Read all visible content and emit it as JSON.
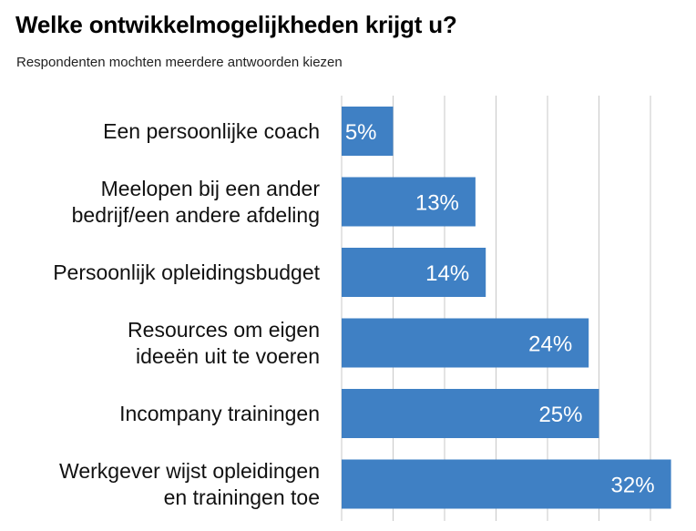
{
  "chart_data": {
    "type": "bar",
    "orientation": "horizontal",
    "title": "Welke ontwikkelmogelijkheden krijgt u?",
    "subtitle": "Respondenten mochten meerdere antwoorden kiezen",
    "categories": [
      [
        "Een persoonlijke coach"
      ],
      [
        "Meelopen bij een ander",
        "bedrijf/een andere afdeling"
      ],
      [
        "Persoonlijk opleidingsbudget"
      ],
      [
        "Resources om eigen",
        "ideeën uit te voeren"
      ],
      [
        "Incompany trainingen"
      ],
      [
        "Werkgever wijst opleidingen",
        "en trainingen toe"
      ]
    ],
    "values": [
      5,
      13,
      14,
      24,
      25,
      32
    ],
    "value_labels": [
      "5%",
      "13%",
      "14%",
      "24%",
      "25%",
      "32%"
    ],
    "unit": "%",
    "xlim": [
      0,
      35
    ],
    "grid": true,
    "bar_color": "#3f80c4",
    "grid_color": "#c8c8c8"
  }
}
